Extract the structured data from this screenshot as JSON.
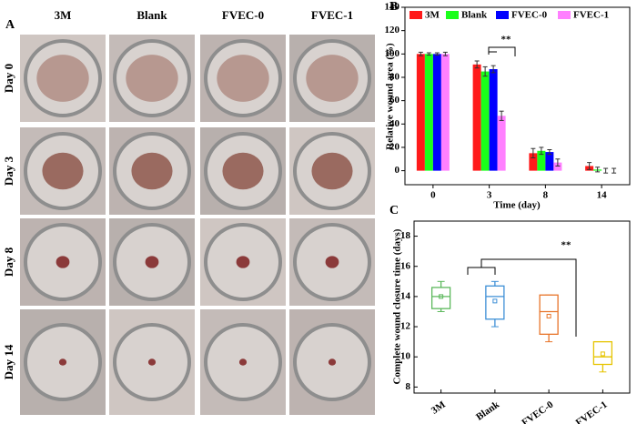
{
  "panel_a": {
    "label": "A",
    "columns": [
      "3M",
      "Blank",
      "FVEC-0",
      "FVEC-1"
    ],
    "rows": [
      "Day 0",
      "Day 3",
      "Day 8",
      "Day 14"
    ]
  },
  "chart_data": [
    {
      "type": "bar",
      "panel": "B",
      "xlabel": "Time (day)",
      "ylabel": "Relative wound area (%)",
      "categories": [
        "0",
        "3",
        "8",
        "14"
      ],
      "series": [
        {
          "name": "3M",
          "color": "#ff1a1a",
          "values": [
            100,
            91,
            15,
            4
          ],
          "errors": [
            1.5,
            3,
            4,
            3
          ]
        },
        {
          "name": "Blank",
          "color": "#1aff1a",
          "values": [
            100,
            85,
            17,
            1
          ],
          "errors": [
            1,
            4,
            3,
            2
          ]
        },
        {
          "name": "FVEC-0",
          "color": "#0000ff",
          "values": [
            100,
            87,
            16,
            0
          ],
          "errors": [
            1,
            3,
            2,
            2
          ]
        },
        {
          "name": "FVEC-1",
          "color": "#ff80ff",
          "values": [
            100,
            47,
            7,
            0
          ],
          "errors": [
            1.5,
            4,
            3,
            2
          ]
        }
      ],
      "ylim": [
        -12,
        140
      ],
      "yticks": [
        0,
        20,
        40,
        60,
        80,
        100,
        120,
        140
      ],
      "legend": "top",
      "annotation": "**"
    },
    {
      "type": "box",
      "panel": "C",
      "ylabel": "Complete wound closure time (days)",
      "categories": [
        "3M",
        "Blank",
        "FVEC-0",
        "FVEC-1"
      ],
      "colors": [
        "#5cb85c",
        "#3d8fd6",
        "#e8752a",
        "#e6c400"
      ],
      "boxes": [
        {
          "min": 13,
          "q1": 13.2,
          "median": 14,
          "q3": 14.6,
          "max": 15,
          "mean": 14
        },
        {
          "min": 12,
          "q1": 12.5,
          "median": 14,
          "q3": 14.7,
          "max": 15,
          "mean": 13.7
        },
        {
          "min": 11,
          "q1": 11.5,
          "median": 13,
          "q3": 14.1,
          "max": 14.1,
          "mean": 12.7
        },
        {
          "min": 9,
          "q1": 9.5,
          "median": 10,
          "q3": 11,
          "max": 11,
          "mean": 10.2
        }
      ],
      "ylim": [
        7.6,
        19
      ],
      "yticks": [
        8,
        10,
        12,
        14,
        16,
        18
      ],
      "annotation": "**"
    }
  ]
}
